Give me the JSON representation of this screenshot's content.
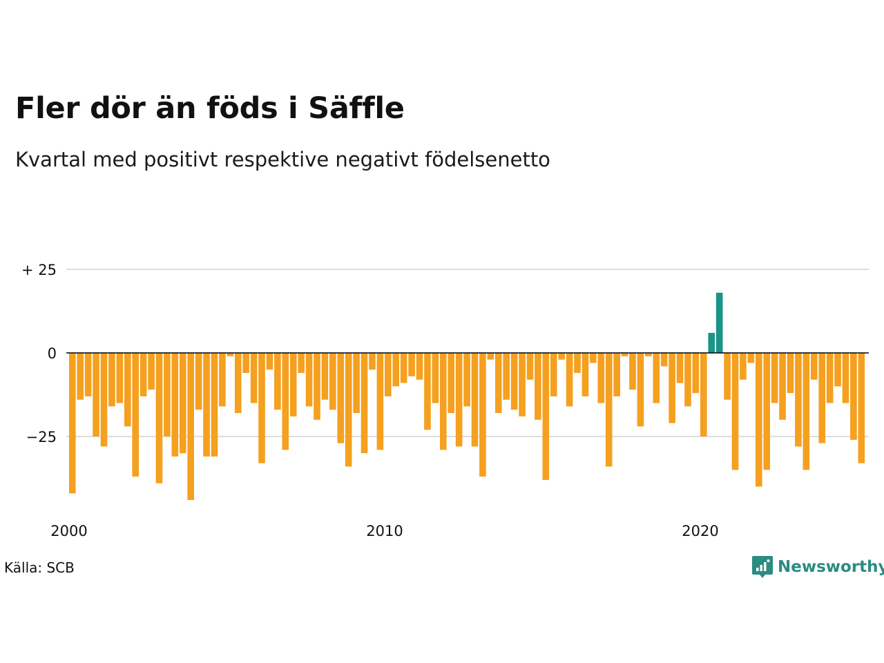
{
  "title": "Fler dör än föds i Säffle",
  "subtitle": "Kvartal med positivt respektive negativt födelsenetto",
  "source": "Källa: SCB",
  "logo": {
    "icon": "newsworthy-logo-icon",
    "text": "Newsworthy"
  },
  "colors": {
    "negative": "#f5a01f",
    "positive": "#1a9488",
    "grid": "#dddddd",
    "zero_line": "#000000"
  },
  "chart_data": {
    "type": "bar",
    "x_start": 2000,
    "x_step": 0.25,
    "xlim": [
      2000,
      2025.5
    ],
    "ylim": [
      -45,
      30
    ],
    "y_ticks": [
      25,
      0,
      -25
    ],
    "y_tick_labels": [
      "+ 25",
      "0",
      "−25"
    ],
    "x_ticks": [
      2000,
      2010,
      2020
    ],
    "x_tick_labels": [
      "2000",
      "2010",
      "2020"
    ],
    "grid": true,
    "values": [
      -42,
      -14,
      -13,
      -25,
      -28,
      -16,
      -15,
      -22,
      -37,
      -13,
      -11,
      -39,
      -25,
      -31,
      -30,
      -44,
      -17,
      -31,
      -31,
      -16,
      -1,
      -18,
      -6,
      -15,
      -33,
      -5,
      -17,
      -29,
      -19,
      -6,
      -16,
      -20,
      -14,
      -17,
      -27,
      -34,
      -18,
      -30,
      -5,
      -29,
      -13,
      -10,
      -9,
      -7,
      -8,
      -23,
      -15,
      -29,
      -18,
      -28,
      -16,
      -28,
      -37,
      -2,
      -18,
      -14,
      -17,
      -19,
      -8,
      -20,
      -38,
      -13,
      -2,
      -16,
      -6,
      -13,
      -3,
      -15,
      -34,
      -13,
      -1,
      -11,
      -22,
      -1,
      -15,
      -4,
      -21,
      -9,
      -16,
      -12,
      -25,
      6,
      18,
      -14,
      -35,
      -8,
      -3,
      -40,
      -35,
      -15,
      -20,
      -12,
      -28,
      -35,
      -8,
      -27,
      -15,
      -10,
      -15,
      -26,
      -33
    ]
  }
}
